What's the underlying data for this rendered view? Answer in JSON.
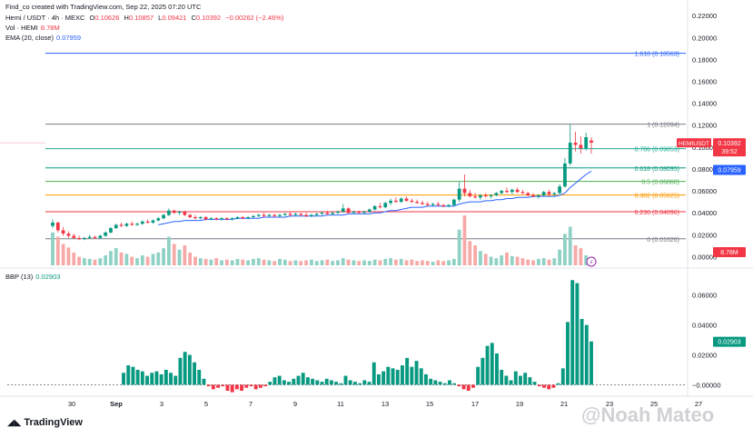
{
  "header": {
    "credit": "Find_co created with TradingView.com, Sep 22, 2025 07:20 UTC",
    "symbol": "Hemi / USDT · 4h · MEXC",
    "ohlc": {
      "o_label": "O",
      "o": "0.10626",
      "h_label": "H",
      "h": "0.10857",
      "l_label": "L",
      "l": "0.09421",
      "c_label": "C",
      "c": "0.10392",
      "chg": "−0.00262 (−2.46%)"
    },
    "vol_label": "Vol · HEMI",
    "vol_value": "8.78M",
    "ema_label": "EMA (20, close)",
    "ema_value": "0.07959"
  },
  "brand": "TradingView",
  "watermark": "@Noah Mateo",
  "colors": {
    "up": "#089981",
    "down": "#f23645",
    "ema": "#2962ff",
    "grid": "#f0f3fa",
    "text": "#131722",
    "axis": "#787b86"
  },
  "chart_data": [
    {
      "type": "candlestick",
      "title": "Hemi / USDT · 4h · MEXC",
      "x_ticks": [
        "30",
        "Sep",
        "3",
        "5",
        "7",
        "9",
        "11",
        "13",
        "15",
        "17",
        "19",
        "21",
        "23",
        "25",
        "27"
      ],
      "y_ticks": [
        "0.22000",
        "0.20000",
        "0.18000",
        "0.16000",
        "0.14000",
        "0.12000",
        "0.10000",
        "0.08000",
        "0.06000",
        "0.04000",
        "0.02000",
        "0.00000"
      ],
      "ylim": [
        -0.008,
        0.226
      ],
      "grid": false,
      "last_price": {
        "symbol": "HEMIUSDT",
        "value": "0.10392",
        "countdown": "39:52"
      },
      "ema_tag": "0.07959",
      "volume_tag": "8.78M",
      "fibonacci": [
        {
          "label": "1.618 (0.18563)",
          "value": 0.18563,
          "color": "#2962ff"
        },
        {
          "label": "1 (0.12094)",
          "value": 0.12094,
          "color": "#787b86"
        },
        {
          "label": "0.786 (0.09853)",
          "value": 0.09853,
          "color": "#22ab94"
        },
        {
          "label": "0.618 (0.08095)",
          "value": 0.08095,
          "color": "#089981"
        },
        {
          "label": "0.5 (0.06860)",
          "value": 0.0686,
          "color": "#4caf50"
        },
        {
          "label": "0.382 (0.05625)",
          "value": 0.05625,
          "color": "#ff9800"
        },
        {
          "label": "0.236 (0.04096)",
          "value": 0.04096,
          "color": "#f23645"
        },
        {
          "label": "0 (0.01626)",
          "value": 0.01626,
          "color": "#787b86"
        }
      ],
      "candles": [
        [
          0.028,
          0.034,
          0.026,
          0.031
        ],
        [
          0.031,
          0.032,
          0.022,
          0.024
        ],
        [
          0.024,
          0.027,
          0.019,
          0.021
        ],
        [
          0.021,
          0.023,
          0.017,
          0.019
        ],
        [
          0.019,
          0.021,
          0.016,
          0.017
        ],
        [
          0.017,
          0.019,
          0.015,
          0.016
        ],
        [
          0.016,
          0.018,
          0.015,
          0.017
        ],
        [
          0.017,
          0.02,
          0.016,
          0.018
        ],
        [
          0.018,
          0.019,
          0.016,
          0.017
        ],
        [
          0.017,
          0.02,
          0.016,
          0.019
        ],
        [
          0.019,
          0.023,
          0.018,
          0.022
        ],
        [
          0.022,
          0.027,
          0.021,
          0.026
        ],
        [
          0.026,
          0.03,
          0.025,
          0.029
        ],
        [
          0.029,
          0.031,
          0.027,
          0.028
        ],
        [
          0.028,
          0.031,
          0.027,
          0.03
        ],
        [
          0.03,
          0.032,
          0.028,
          0.029
        ],
        [
          0.029,
          0.031,
          0.028,
          0.03
        ],
        [
          0.03,
          0.033,
          0.029,
          0.032
        ],
        [
          0.032,
          0.034,
          0.03,
          0.031
        ],
        [
          0.031,
          0.034,
          0.03,
          0.033
        ],
        [
          0.033,
          0.036,
          0.032,
          0.035
        ],
        [
          0.035,
          0.039,
          0.034,
          0.038
        ],
        [
          0.038,
          0.044,
          0.037,
          0.042
        ],
        [
          0.042,
          0.043,
          0.039,
          0.04
        ],
        [
          0.04,
          0.042,
          0.038,
          0.041
        ],
        [
          0.041,
          0.042,
          0.037,
          0.038
        ],
        [
          0.038,
          0.039,
          0.035,
          0.036
        ],
        [
          0.036,
          0.038,
          0.034,
          0.035
        ],
        [
          0.035,
          0.037,
          0.034,
          0.036
        ],
        [
          0.036,
          0.037,
          0.033,
          0.034
        ],
        [
          0.034,
          0.036,
          0.033,
          0.035
        ],
        [
          0.035,
          0.036,
          0.033,
          0.034
        ],
        [
          0.034,
          0.036,
          0.033,
          0.035
        ],
        [
          0.035,
          0.036,
          0.033,
          0.034
        ],
        [
          0.034,
          0.036,
          0.033,
          0.035
        ],
        [
          0.035,
          0.037,
          0.034,
          0.036
        ],
        [
          0.036,
          0.037,
          0.034,
          0.035
        ],
        [
          0.035,
          0.037,
          0.034,
          0.036
        ],
        [
          0.036,
          0.038,
          0.035,
          0.037
        ],
        [
          0.037,
          0.039,
          0.036,
          0.038
        ],
        [
          0.038,
          0.04,
          0.036,
          0.037
        ],
        [
          0.037,
          0.039,
          0.036,
          0.038
        ],
        [
          0.038,
          0.039,
          0.036,
          0.037
        ],
        [
          0.037,
          0.039,
          0.036,
          0.038
        ],
        [
          0.038,
          0.04,
          0.037,
          0.039
        ],
        [
          0.039,
          0.041,
          0.037,
          0.038
        ],
        [
          0.038,
          0.04,
          0.037,
          0.039
        ],
        [
          0.039,
          0.04,
          0.037,
          0.038
        ],
        [
          0.038,
          0.04,
          0.036,
          0.037
        ],
        [
          0.037,
          0.039,
          0.036,
          0.038
        ],
        [
          0.038,
          0.04,
          0.037,
          0.039
        ],
        [
          0.039,
          0.041,
          0.038,
          0.04
        ],
        [
          0.04,
          0.042,
          0.038,
          0.039
        ],
        [
          0.039,
          0.041,
          0.038,
          0.04
        ],
        [
          0.04,
          0.042,
          0.039,
          0.041
        ],
        [
          0.041,
          0.048,
          0.04,
          0.044
        ],
        [
          0.044,
          0.045,
          0.039,
          0.04
        ],
        [
          0.04,
          0.042,
          0.039,
          0.041
        ],
        [
          0.041,
          0.042,
          0.039,
          0.04
        ],
        [
          0.04,
          0.042,
          0.039,
          0.041
        ],
        [
          0.041,
          0.044,
          0.04,
          0.043
        ],
        [
          0.043,
          0.047,
          0.042,
          0.046
        ],
        [
          0.046,
          0.049,
          0.044,
          0.045
        ],
        [
          0.045,
          0.05,
          0.044,
          0.049
        ],
        [
          0.049,
          0.053,
          0.047,
          0.051
        ],
        [
          0.051,
          0.054,
          0.049,
          0.05
        ],
        [
          0.05,
          0.054,
          0.049,
          0.053
        ],
        [
          0.053,
          0.055,
          0.05,
          0.051
        ],
        [
          0.051,
          0.053,
          0.049,
          0.05
        ],
        [
          0.05,
          0.052,
          0.048,
          0.049
        ],
        [
          0.049,
          0.051,
          0.047,
          0.048
        ],
        [
          0.048,
          0.05,
          0.046,
          0.047
        ],
        [
          0.047,
          0.049,
          0.046,
          0.048
        ],
        [
          0.048,
          0.05,
          0.046,
          0.047
        ],
        [
          0.047,
          0.048,
          0.045,
          0.046
        ],
        [
          0.046,
          0.048,
          0.045,
          0.047
        ],
        [
          0.047,
          0.053,
          0.046,
          0.052
        ],
        [
          0.052,
          0.068,
          0.05,
          0.062
        ],
        [
          0.062,
          0.075,
          0.055,
          0.058
        ],
        [
          0.058,
          0.061,
          0.054,
          0.055
        ],
        [
          0.055,
          0.058,
          0.053,
          0.054
        ],
        [
          0.054,
          0.057,
          0.052,
          0.056
        ],
        [
          0.056,
          0.058,
          0.054,
          0.055
        ],
        [
          0.055,
          0.057,
          0.053,
          0.056
        ],
        [
          0.056,
          0.059,
          0.055,
          0.058
        ],
        [
          0.058,
          0.061,
          0.057,
          0.06
        ],
        [
          0.06,
          0.063,
          0.058,
          0.059
        ],
        [
          0.059,
          0.062,
          0.057,
          0.061
        ],
        [
          0.061,
          0.063,
          0.058,
          0.059
        ],
        [
          0.059,
          0.061,
          0.057,
          0.058
        ],
        [
          0.058,
          0.059,
          0.055,
          0.056
        ],
        [
          0.056,
          0.058,
          0.054,
          0.055
        ],
        [
          0.055,
          0.057,
          0.053,
          0.056
        ],
        [
          0.056,
          0.06,
          0.055,
          0.059
        ],
        [
          0.059,
          0.061,
          0.055,
          0.057
        ],
        [
          0.057,
          0.059,
          0.055,
          0.058
        ],
        [
          0.058,
          0.066,
          0.057,
          0.064
        ],
        [
          0.064,
          0.09,
          0.063,
          0.085
        ],
        [
          0.085,
          0.121,
          0.083,
          0.104
        ],
        [
          0.104,
          0.114,
          0.096,
          0.102
        ],
        [
          0.102,
          0.11,
          0.094,
          0.099
        ],
        [
          0.099,
          0.113,
          0.097,
          0.109
        ],
        [
          0.106,
          0.109,
          0.094,
          0.104
        ]
      ],
      "ema": [
        0.025,
        0.026,
        0.026,
        0.026,
        0.025,
        0.025,
        0.025,
        0.025,
        0.025,
        0.025,
        0.025,
        0.025,
        0.026,
        0.026,
        0.027,
        0.027,
        0.028,
        0.028,
        0.028,
        0.029,
        0.029,
        0.03,
        0.031,
        0.032,
        0.032,
        0.033,
        0.033,
        0.033,
        0.033,
        0.034,
        0.034,
        0.034,
        0.034,
        0.034,
        0.034,
        0.035,
        0.035,
        0.035,
        0.035,
        0.035,
        0.036,
        0.036,
        0.036,
        0.036,
        0.036,
        0.037,
        0.037,
        0.037,
        0.037,
        0.037,
        0.037,
        0.037,
        0.038,
        0.038,
        0.038,
        0.038,
        0.039,
        0.039,
        0.039,
        0.039,
        0.039,
        0.04,
        0.04,
        0.041,
        0.042,
        0.042,
        0.043,
        0.044,
        0.045,
        0.045,
        0.045,
        0.046,
        0.046,
        0.046,
        0.046,
        0.046,
        0.046,
        0.048,
        0.049,
        0.05,
        0.05,
        0.05,
        0.051,
        0.051,
        0.052,
        0.052,
        0.053,
        0.053,
        0.054,
        0.054,
        0.054,
        0.055,
        0.055,
        0.055,
        0.055,
        0.055,
        0.056,
        0.058,
        0.063,
        0.067,
        0.071,
        0.075,
        0.078
      ],
      "volume": [
        0.46,
        0.4,
        0.3,
        0.25,
        0.18,
        0.12,
        0.1,
        0.09,
        0.08,
        0.1,
        0.14,
        0.2,
        0.24,
        0.18,
        0.16,
        0.12,
        0.1,
        0.14,
        0.12,
        0.16,
        0.18,
        0.24,
        0.4,
        0.3,
        0.22,
        0.28,
        0.18,
        0.12,
        0.1,
        0.09,
        0.08,
        0.1,
        0.07,
        0.08,
        0.07,
        0.09,
        0.08,
        0.07,
        0.09,
        0.1,
        0.08,
        0.07,
        0.06,
        0.09,
        0.08,
        0.06,
        0.07,
        0.06,
        0.07,
        0.08,
        0.06,
        0.07,
        0.08,
        0.06,
        0.07,
        0.1,
        0.08,
        0.07,
        0.06,
        0.07,
        0.06,
        0.08,
        0.07,
        0.09,
        0.1,
        0.08,
        0.09,
        0.07,
        0.08,
        0.06,
        0.07,
        0.06,
        0.05,
        0.07,
        0.06,
        0.07,
        0.09,
        0.5,
        0.7,
        0.34,
        0.28,
        0.2,
        0.16,
        0.12,
        0.1,
        0.14,
        0.18,
        0.13,
        0.12,
        0.1,
        0.08,
        0.07,
        0.09,
        0.1,
        0.08,
        0.1,
        0.22,
        0.44,
        0.54,
        0.28,
        0.24,
        0.14,
        0.08
      ]
    },
    {
      "type": "bar",
      "title": "BBP (13)",
      "value_label": "0.02903",
      "y_ticks": [
        "0.06000",
        "0.04000",
        "0.02000",
        "0.00000"
      ],
      "ylim": [
        -0.004,
        0.072
      ],
      "values": [
        0.0,
        0.0,
        0.0,
        0.0,
        0.0,
        0.0,
        0.0,
        0.0,
        0.0,
        0.0,
        0.0,
        0.0,
        0.0,
        0.0,
        0.0,
        0.008,
        0.013,
        0.012,
        0.01,
        0.009,
        0.006,
        0.008,
        0.009,
        0.007,
        0.01,
        0.008,
        0.006,
        0.018,
        0.022,
        0.02,
        0.015,
        0.01,
        0.004,
        -0.001,
        -0.003,
        -0.002,
        -0.001,
        -0.004,
        -0.005,
        -0.003,
        -0.004,
        -0.002,
        -0.001,
        -0.003,
        -0.002,
        -0.001,
        0.002,
        0.005,
        0.006,
        0.003,
        0.002,
        0.004,
        0.006,
        0.008,
        0.005,
        0.004,
        0.003,
        0.002,
        0.004,
        0.003,
        0.002,
        0.001,
        0.006,
        0.003,
        0.002,
        0.001,
        0.003,
        0.002,
        0.015,
        0.007,
        0.009,
        0.012,
        0.011,
        0.01,
        0.013,
        0.018,
        0.012,
        0.016,
        0.011,
        0.007,
        0.004,
        0.003,
        0.002,
        0.001,
        0.003,
        0.001,
        -0.001,
        -0.003,
        -0.004,
        -0.002,
        0.012,
        0.018,
        0.026,
        0.028,
        0.021,
        0.01,
        0.006,
        0.003,
        0.009,
        0.006,
        0.008,
        0.005,
        0.002,
        -0.001,
        -0.002,
        -0.003,
        -0.002,
        0.001,
        0.011,
        0.042,
        0.07,
        0.068,
        0.044,
        0.04,
        0.029
      ]
    }
  ]
}
